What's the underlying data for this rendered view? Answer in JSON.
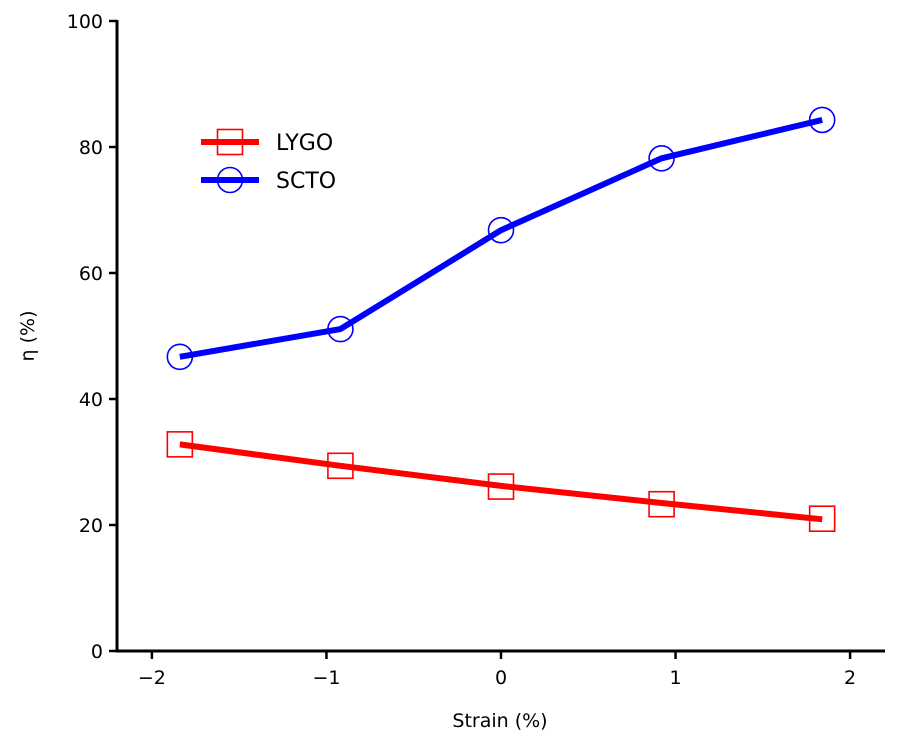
{
  "chart_data": {
    "type": "line",
    "title": "",
    "xlabel": "Strain (%)",
    "ylabel": "η (%)",
    "xlim": [
      -2.2,
      2.2
    ],
    "ylim": [
      0,
      100
    ],
    "xticks": [
      -2,
      -1,
      0,
      1,
      2
    ],
    "xtick_labels": [
      "−2",
      "−1",
      "0",
      "1",
      "2"
    ],
    "yticks": [
      0,
      20,
      40,
      60,
      80,
      100
    ],
    "ytick_labels": [
      "0",
      "20",
      "40",
      "60",
      "80",
      "100"
    ],
    "legend_position": "upper-left",
    "series": [
      {
        "name": "LYGO",
        "color": "#ff0000",
        "marker": "square",
        "x": [
          -1.84,
          -0.92,
          0.0,
          0.92,
          1.84
        ],
        "points": [
          32.8,
          29.4,
          26.1,
          23.3,
          21.0
        ],
        "line": [
          32.8,
          29.4,
          26.2,
          23.5,
          20.9
        ]
      },
      {
        "name": "SCTO",
        "color": "#0000ff",
        "marker": "circle",
        "x": [
          -1.84,
          -0.92,
          0.0,
          0.92,
          1.84
        ],
        "points": [
          46.7,
          51.1,
          66.8,
          78.2,
          84.3
        ],
        "line": [
          46.7,
          51.1,
          66.8,
          78.2,
          84.3
        ]
      }
    ]
  }
}
